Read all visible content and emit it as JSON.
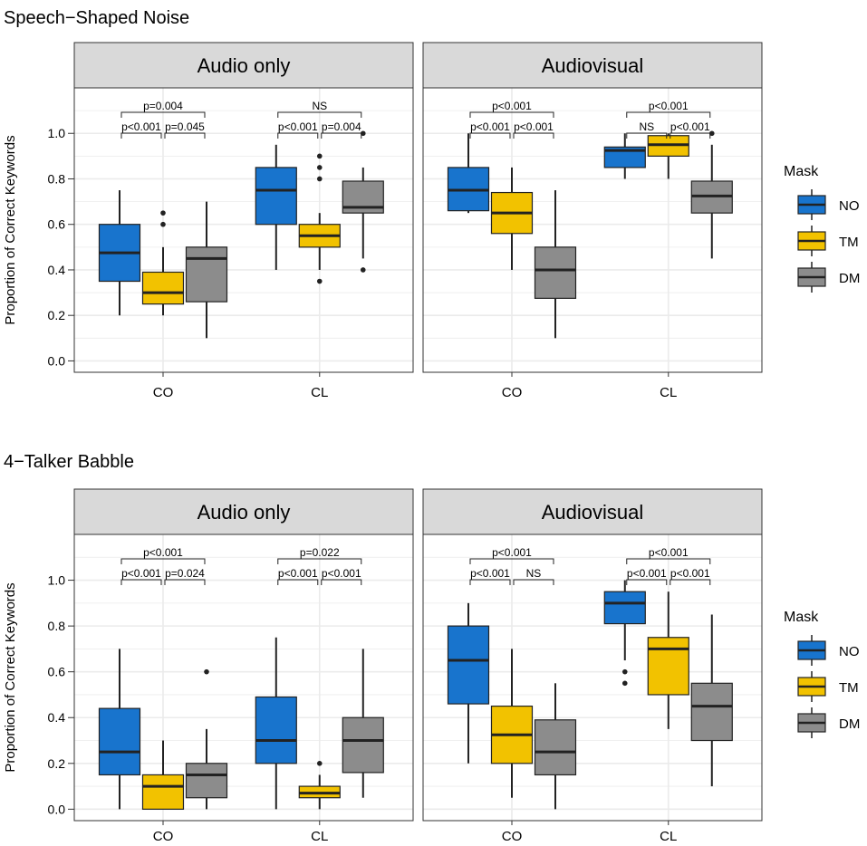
{
  "colors": {
    "NO": "#1874cd",
    "TM": "#f2c200",
    "DM": "#8c8c8c",
    "strip_bg": "#d9d9d9",
    "grid": "#ebebeb"
  },
  "chart_data": [
    {
      "type": "box",
      "title": "Speech−Shaped Noise",
      "ylabel": "Proportion of Correct Keywords",
      "ylim": [
        -0.05,
        1.2
      ],
      "yticks": [
        "0.0",
        "0.2",
        "0.4",
        "0.6",
        "0.8",
        "1.0"
      ],
      "legend": {
        "title": "Mask",
        "labels": [
          "NO",
          "TM",
          "DM"
        ],
        "placement": "right"
      },
      "panels": [
        {
          "facet": "Audio only",
          "categories": [
            "CO",
            "CL"
          ],
          "boxes": {
            "CO": {
              "NO": {
                "min": 0.2,
                "q1": 0.35,
                "median": 0.475,
                "q3": 0.6,
                "max": 0.75,
                "outliers": []
              },
              "TM": {
                "min": 0.2,
                "q1": 0.25,
                "median": 0.3,
                "q3": 0.39,
                "max": 0.5,
                "outliers": [
                  0.6,
                  0.65
                ]
              },
              "DM": {
                "min": 0.1,
                "q1": 0.26,
                "median": 0.45,
                "q3": 0.5,
                "max": 0.7,
                "outliers": []
              }
            },
            "CL": {
              "NO": {
                "min": 0.4,
                "q1": 0.6,
                "median": 0.75,
                "q3": 0.85,
                "max": 0.95,
                "outliers": []
              },
              "TM": {
                "min": 0.4,
                "q1": 0.5,
                "median": 0.55,
                "q3": 0.6,
                "max": 0.65,
                "outliers": [
                  0.35,
                  0.8,
                  0.85,
                  0.9
                ]
              },
              "DM": {
                "min": 0.45,
                "q1": 0.65,
                "median": 0.675,
                "q3": 0.79,
                "max": 0.85,
                "outliers": [
                  0.4,
                  1.0
                ]
              }
            }
          },
          "annotations": [
            {
              "cat": "CO",
              "from": "NO",
              "to": "TM",
              "label": "p<0.001",
              "level": 1
            },
            {
              "cat": "CO",
              "from": "TM",
              "to": "DM",
              "label": "p=0.045",
              "level": 1
            },
            {
              "cat": "CO",
              "from": "NO",
              "to": "DM",
              "label": "p=0.004",
              "level": 2
            },
            {
              "cat": "CL",
              "from": "NO",
              "to": "TM",
              "label": "p<0.001",
              "level": 1
            },
            {
              "cat": "CL",
              "from": "TM",
              "to": "DM",
              "label": "p=0.004",
              "level": 1
            },
            {
              "cat": "CL",
              "from": "NO",
              "to": "DM",
              "label": "NS",
              "level": 2
            }
          ]
        },
        {
          "facet": "Audiovisual",
          "categories": [
            "CO",
            "CL"
          ],
          "boxes": {
            "CO": {
              "NO": {
                "min": 0.65,
                "q1": 0.66,
                "median": 0.75,
                "q3": 0.85,
                "max": 1.0,
                "outliers": []
              },
              "TM": {
                "min": 0.4,
                "q1": 0.56,
                "median": 0.65,
                "q3": 0.74,
                "max": 0.85,
                "outliers": []
              },
              "DM": {
                "min": 0.1,
                "q1": 0.275,
                "median": 0.4,
                "q3": 0.5,
                "max": 0.75,
                "outliers": []
              }
            },
            "CL": {
              "NO": {
                "min": 0.8,
                "q1": 0.85,
                "median": 0.925,
                "q3": 0.94,
                "max": 1.0,
                "outliers": []
              },
              "TM": {
                "min": 0.8,
                "q1": 0.9,
                "median": 0.95,
                "q3": 0.99,
                "max": 1.0,
                "outliers": []
              },
              "DM": {
                "min": 0.45,
                "q1": 0.65,
                "median": 0.725,
                "q3": 0.79,
                "max": 0.95,
                "outliers": [
                  1.0
                ]
              }
            }
          },
          "annotations": [
            {
              "cat": "CO",
              "from": "NO",
              "to": "TM",
              "label": "p<0.001",
              "level": 1
            },
            {
              "cat": "CO",
              "from": "TM",
              "to": "DM",
              "label": "p<0.001",
              "level": 1
            },
            {
              "cat": "CO",
              "from": "NO",
              "to": "DM",
              "label": "p<0.001",
              "level": 2
            },
            {
              "cat": "CL",
              "from": "NO",
              "to": "TM",
              "label": "NS",
              "level": 1
            },
            {
              "cat": "CL",
              "from": "TM",
              "to": "DM",
              "label": "p<0.001",
              "level": 1
            },
            {
              "cat": "CL",
              "from": "NO",
              "to": "DM",
              "label": "p<0.001",
              "level": 2
            }
          ]
        }
      ]
    },
    {
      "type": "box",
      "title": "4−Talker Babble",
      "ylabel": "Proportion of Correct Keywords",
      "ylim": [
        -0.05,
        1.2
      ],
      "yticks": [
        "0.0",
        "0.2",
        "0.4",
        "0.6",
        "0.8",
        "1.0"
      ],
      "legend": {
        "title": "Mask",
        "labels": [
          "NO",
          "TM",
          "DM"
        ],
        "placement": "right"
      },
      "panels": [
        {
          "facet": "Audio only",
          "categories": [
            "CO",
            "CL"
          ],
          "boxes": {
            "CO": {
              "NO": {
                "min": 0.0,
                "q1": 0.15,
                "median": 0.25,
                "q3": 0.44,
                "max": 0.7,
                "outliers": []
              },
              "TM": {
                "min": 0.0,
                "q1": 0.0,
                "median": 0.1,
                "q3": 0.15,
                "max": 0.3,
                "outliers": []
              },
              "DM": {
                "min": 0.0,
                "q1": 0.05,
                "median": 0.15,
                "q3": 0.2,
                "max": 0.35,
                "outliers": [
                  0.6
                ]
              }
            },
            "CL": {
              "NO": {
                "min": 0.0,
                "q1": 0.2,
                "median": 0.3,
                "q3": 0.49,
                "max": 0.75,
                "outliers": []
              },
              "TM": {
                "min": 0.0,
                "q1": 0.05,
                "median": 0.07,
                "q3": 0.1,
                "max": 0.15,
                "outliers": [
                  0.2
                ]
              },
              "DM": {
                "min": 0.05,
                "q1": 0.16,
                "median": 0.3,
                "q3": 0.4,
                "max": 0.7,
                "outliers": []
              }
            }
          },
          "annotations": [
            {
              "cat": "CO",
              "from": "NO",
              "to": "TM",
              "label": "p<0.001",
              "level": 1
            },
            {
              "cat": "CO",
              "from": "TM",
              "to": "DM",
              "label": "p=0.024",
              "level": 1
            },
            {
              "cat": "CO",
              "from": "NO",
              "to": "DM",
              "label": "p<0.001",
              "level": 2
            },
            {
              "cat": "CL",
              "from": "NO",
              "to": "TM",
              "label": "p<0.001",
              "level": 1
            },
            {
              "cat": "CL",
              "from": "TM",
              "to": "DM",
              "label": "p<0.001",
              "level": 1
            },
            {
              "cat": "CL",
              "from": "NO",
              "to": "DM",
              "label": "p=0.022",
              "level": 2
            }
          ]
        },
        {
          "facet": "Audiovisual",
          "categories": [
            "CO",
            "CL"
          ],
          "boxes": {
            "CO": {
              "NO": {
                "min": 0.2,
                "q1": 0.46,
                "median": 0.65,
                "q3": 0.8,
                "max": 0.9,
                "outliers": []
              },
              "TM": {
                "min": 0.05,
                "q1": 0.2,
                "median": 0.325,
                "q3": 0.45,
                "max": 0.7,
                "outliers": []
              },
              "DM": {
                "min": 0.0,
                "q1": 0.15,
                "median": 0.25,
                "q3": 0.39,
                "max": 0.55,
                "outliers": []
              }
            },
            "CL": {
              "NO": {
                "min": 0.65,
                "q1": 0.81,
                "median": 0.9,
                "q3": 0.95,
                "max": 1.0,
                "outliers": [
                  0.55,
                  0.6
                ]
              },
              "TM": {
                "min": 0.35,
                "q1": 0.5,
                "median": 0.7,
                "q3": 0.75,
                "max": 0.95,
                "outliers": []
              },
              "DM": {
                "min": 0.1,
                "q1": 0.3,
                "median": 0.45,
                "q3": 0.55,
                "max": 0.85,
                "outliers": []
              }
            }
          },
          "annotations": [
            {
              "cat": "CO",
              "from": "NO",
              "to": "TM",
              "label": "p<0.001",
              "level": 1
            },
            {
              "cat": "CO",
              "from": "TM",
              "to": "DM",
              "label": "NS",
              "level": 1
            },
            {
              "cat": "CO",
              "from": "NO",
              "to": "DM",
              "label": "p<0.001",
              "level": 2
            },
            {
              "cat": "CL",
              "from": "NO",
              "to": "TM",
              "label": "p<0.001",
              "level": 1
            },
            {
              "cat": "CL",
              "from": "TM",
              "to": "DM",
              "label": "p<0.001",
              "level": 1
            },
            {
              "cat": "CL",
              "from": "NO",
              "to": "DM",
              "label": "p<0.001",
              "level": 2
            }
          ]
        }
      ]
    }
  ]
}
